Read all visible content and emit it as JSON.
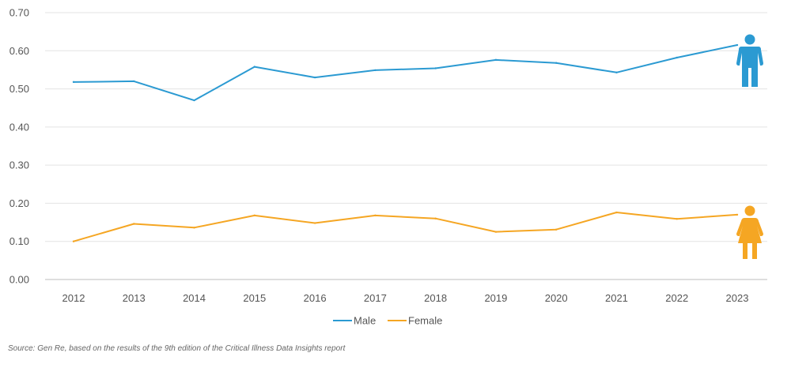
{
  "chart_data": {
    "type": "line",
    "title": "",
    "xlabel": "",
    "ylabel": "",
    "categories": [
      "2012",
      "2013",
      "2014",
      "2015",
      "2016",
      "2017",
      "2018",
      "2019",
      "2020",
      "2021",
      "2022",
      "2023"
    ],
    "ylim": [
      0,
      0.7
    ],
    "yticks": [
      "0.00",
      "0.10",
      "0.20",
      "0.30",
      "0.40",
      "0.50",
      "0.60",
      "0.70"
    ],
    "grid": true,
    "legend_position": "bottom-center",
    "series": [
      {
        "name": "Male",
        "color": "#2b9ad2",
        "icon": "male-figure-icon",
        "values": [
          0.518,
          0.52,
          0.47,
          0.558,
          0.53,
          0.549,
          0.554,
          0.576,
          0.568,
          0.543,
          0.582,
          0.615
        ]
      },
      {
        "name": "Female",
        "color": "#f5a623",
        "icon": "female-figure-icon",
        "values": [
          0.1,
          0.146,
          0.136,
          0.168,
          0.148,
          0.168,
          0.16,
          0.125,
          0.131,
          0.176,
          0.159,
          0.17
        ]
      }
    ]
  },
  "source": "Source: Gen Re, based on the results of the 9th edition of the Critical Illness Data Insights report"
}
